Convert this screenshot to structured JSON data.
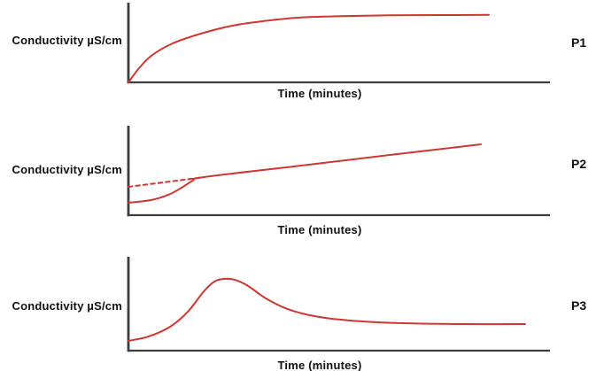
{
  "colors": {
    "curve_red": "#cd3732",
    "axis": "#3d3d3d",
    "label_text": "#111111",
    "background": "#ffffff"
  },
  "chart_data": [
    {
      "id": "P1",
      "type": "line",
      "panel_label": "P1",
      "ylabel": "Conductivity µS/cm",
      "xlabel": "Time (minutes)",
      "axes": {
        "ticks": "none",
        "x_range": "unlabeled",
        "y_range": "unlabeled",
        "grid": false
      },
      "legend": "none",
      "coords_note": "points_pct are [x,y] percent of plot area from origin (bottom-left)",
      "series": [
        {
          "name": "conductivity-saturation-curve",
          "style": "solid",
          "color": "#cd3732",
          "points_pct": [
            [
              0,
              0
            ],
            [
              2.7,
              18.9
            ],
            [
              5.7,
              34.4
            ],
            [
              10.5,
              48.9
            ],
            [
              17.9,
              62.2
            ],
            [
              25.2,
              71.7
            ],
            [
              32.6,
              77.2
            ],
            [
              40.1,
              81.1
            ],
            [
              50.4,
              83.0
            ],
            [
              62.0,
              84.1
            ],
            [
              74.6,
              84.4
            ],
            [
              85.5,
              84.7
            ]
          ]
        }
      ]
    },
    {
      "id": "P2",
      "type": "line",
      "panel_label": "P2",
      "ylabel": "Conductivity µS/cm",
      "xlabel": "Time (minutes)",
      "axes": {
        "ticks": "none",
        "x_range": "unlabeled",
        "y_range": "unlabeled",
        "grid": false
      },
      "legend": "none",
      "coords_note": "points_pct are [x,y] percent of plot area from origin (bottom-left)",
      "series": [
        {
          "name": "conductivity-sigmoid-then-linear-rise",
          "style": "solid",
          "color": "#cd3732",
          "points_pct": [
            [
              0,
              13.9
            ],
            [
              5.3,
              16.8
            ],
            [
              9.5,
              22.8
            ],
            [
              12.6,
              30.7
            ],
            [
              15.3,
              38.6
            ],
            [
              17.9,
              42.6
            ],
            [
              40.1,
              55.0
            ],
            [
              62.0,
              67.3
            ],
            [
              83.6,
              79.2
            ]
          ]
        },
        {
          "name": "dashed-back-extrapolation-of-linear-segment",
          "style": "dashed",
          "color": "#cd3732",
          "points_pct": [
            [
              0,
              31.7
            ],
            [
              8.7,
              36.9
            ],
            [
              17.4,
              42.1
            ]
          ]
        }
      ]
    },
    {
      "id": "P3",
      "type": "line",
      "panel_label": "P3",
      "ylabel": "Conductivity µS/cm",
      "xlabel": "Time (minutes)",
      "axes": {
        "ticks": "none",
        "x_range": "unlabeled",
        "y_range": "unlabeled",
        "grid": false
      },
      "legend": "none",
      "coords_note": "points_pct are [x,y] percent of plot area from origin (bottom-left)",
      "series": [
        {
          "name": "conductivity-peak-then-decay-curve",
          "style": "solid",
          "color": "#cd3732",
          "points_pct": [
            [
              0,
              10.4
            ],
            [
              4.8,
              15.1
            ],
            [
              9.9,
              25.5
            ],
            [
              14.1,
              41.5
            ],
            [
              17.9,
              63.2
            ],
            [
              20.4,
              73.6
            ],
            [
              22.7,
              76.4
            ],
            [
              25.2,
              75.5
            ],
            [
              28.4,
              68.9
            ],
            [
              32.6,
              55.7
            ],
            [
              37.8,
              44.3
            ],
            [
              44.1,
              36.8
            ],
            [
              52.5,
              32.1
            ],
            [
              65.1,
              29.2
            ],
            [
              79.8,
              28.3
            ],
            [
              94.1,
              28.3
            ]
          ]
        }
      ]
    }
  ]
}
